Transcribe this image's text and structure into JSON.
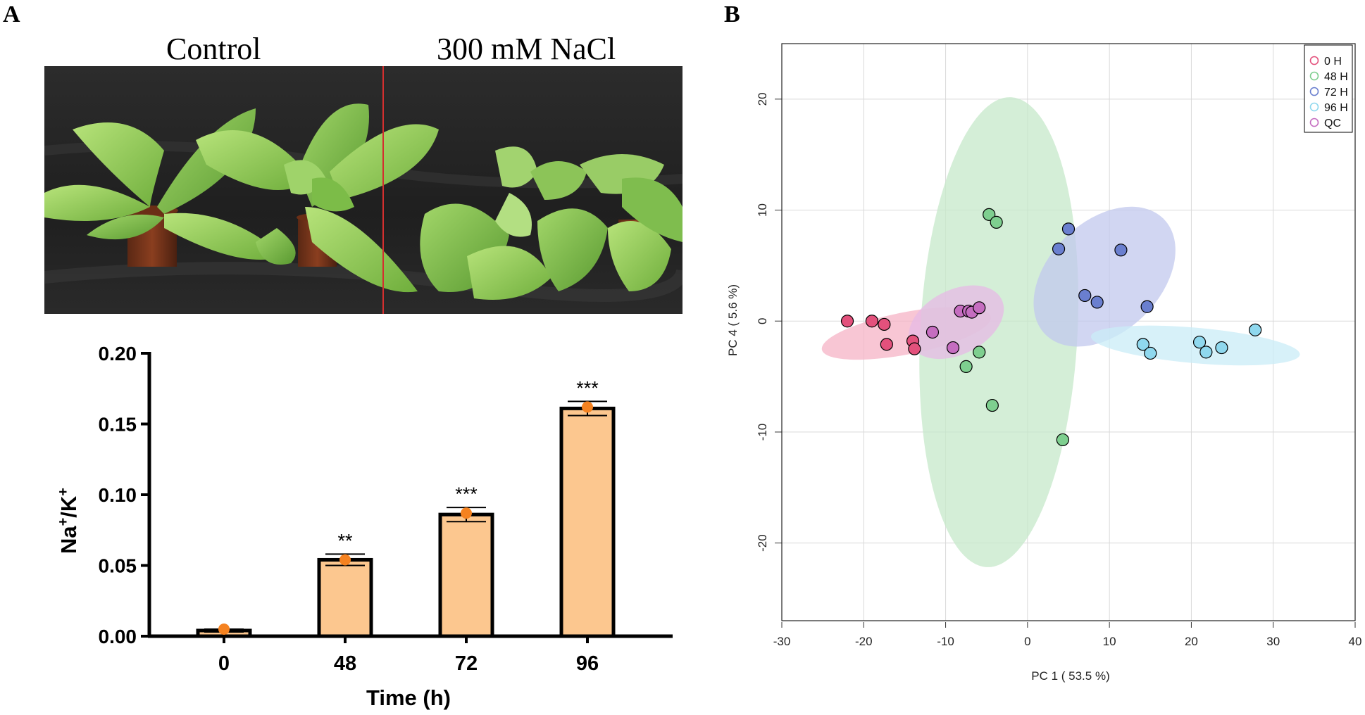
{
  "panels": {
    "a": "A",
    "b": "B"
  },
  "photo": {
    "left_label": "Control",
    "right_label": "300 mM NaCl",
    "divider_color": "#d32f2f"
  },
  "chart_data": [
    {
      "type": "bar",
      "title": "",
      "categories": [
        "0",
        "48",
        "72",
        "96"
      ],
      "values": [
        0.004,
        0.054,
        0.086,
        0.161
      ],
      "errors": [
        0.001,
        0.004,
        0.005,
        0.005
      ],
      "points": [
        0.005,
        0.054,
        0.087,
        0.162
      ],
      "significance": [
        "",
        "**",
        "***",
        "***"
      ],
      "xlabel": "Time (h)",
      "ylabel_main": "Na",
      "ylabel_sup1": "+",
      "ylabel_sep": "/K",
      "ylabel_sup2": "+",
      "ylim": [
        0,
        0.2
      ],
      "yticks": [
        "0.00",
        "0.05",
        "0.10",
        "0.15",
        "0.20"
      ],
      "bar_color": "#fcc78f",
      "point_color": "#f58220"
    },
    {
      "type": "scatter",
      "title": "",
      "xlabel": "PC 1 ( 53.5 %)",
      "ylabel": "PC 4 ( 5.6 %)",
      "xlim": [
        -30,
        40
      ],
      "ylim": [
        -27,
        25
      ],
      "xticks": [
        "-30",
        "-20",
        "-10",
        "0",
        "10",
        "20",
        "30",
        "40"
      ],
      "yticks": [
        "-20",
        "-10",
        "0",
        "10",
        "20"
      ],
      "grid": true,
      "legend_position": "top-right",
      "series": [
        {
          "name": "0 H",
          "color": "#e3517c",
          "ellipse_color": "#f6b3c6",
          "ellipse": {
            "cx": -14.8,
            "cy": -1.1,
            "rx": 10.5,
            "ry": 1.9,
            "angle": -11
          },
          "x": [
            -22.0,
            -19.0,
            -17.5,
            -17.2,
            -14.0,
            -13.8
          ],
          "y": [
            0.0,
            0.0,
            -0.3,
            -2.1,
            -1.8,
            -2.5
          ]
        },
        {
          "name": "48 H",
          "color": "#7ecf8f",
          "ellipse_color": "#c5e8c9",
          "ellipse": {
            "cx": -3.5,
            "cy": -1.0,
            "rx": 9.6,
            "ry": 21.2,
            "angle": 3
          },
          "x": [
            -4.7,
            -3.8,
            -7.5,
            -5.9,
            -4.3,
            4.3
          ],
          "y": [
            9.6,
            8.9,
            -4.1,
            -2.8,
            -7.6,
            -10.7
          ]
        },
        {
          "name": "72 H",
          "color": "#6a7fcf",
          "ellipse_color": "#c2c8ee",
          "ellipse": {
            "cx": 9.4,
            "cy": 4.0,
            "rx": 10.1,
            "ry": 5.0,
            "angle": -44
          },
          "x": [
            5.0,
            3.8,
            11.4,
            7.0,
            8.5,
            14.6
          ],
          "y": [
            8.3,
            6.5,
            6.4,
            2.3,
            1.7,
            1.3
          ]
        },
        {
          "name": "96 H",
          "color": "#8fd8ee",
          "ellipse_color": "#c9ecf7",
          "ellipse": {
            "cx": 20.5,
            "cy": -2.2,
            "rx": 12.8,
            "ry": 1.6,
            "angle": 5
          },
          "x": [
            14.1,
            15.0,
            21.0,
            21.8,
            23.7,
            27.8
          ],
          "y": [
            -2.1,
            -2.9,
            -1.9,
            -2.8,
            -2.4,
            -0.8
          ]
        },
        {
          "name": "QC",
          "color": "#c56dc0",
          "ellipse_color": "#e7b9e5",
          "ellipse": {
            "cx": -8.7,
            "cy": -0.1,
            "rx": 6.2,
            "ry": 2.9,
            "angle": -27
          },
          "x": [
            -8.2,
            -7.2,
            -6.8,
            -5.9,
            -11.6,
            -9.1
          ],
          "y": [
            0.9,
            0.9,
            0.8,
            1.2,
            -1.0,
            -2.4
          ]
        }
      ]
    }
  ]
}
